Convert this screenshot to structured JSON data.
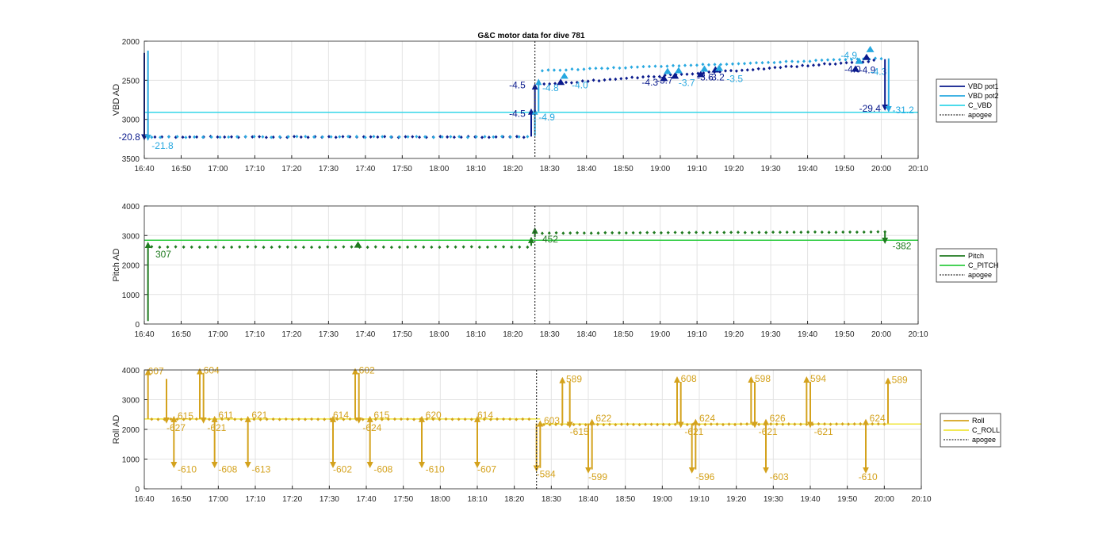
{
  "figure": {
    "title": "G&C motor data for dive 781",
    "apogee_label": "apogee"
  },
  "chart_data": [
    {
      "type": "scatter",
      "name": "vbd",
      "title": "G&C motor data for dive 781",
      "xlabel": "",
      "ylabel": "VBD AD",
      "xlim": [
        "16:40",
        "20:10"
      ],
      "ylim": [
        2000,
        3500
      ],
      "y_reversed": true,
      "yticks": [
        2000,
        2500,
        3000,
        3500
      ],
      "xticks": [
        "16:40",
        "16:50",
        "17:00",
        "17:10",
        "17:20",
        "17:30",
        "17:40",
        "17:50",
        "18:00",
        "18:10",
        "18:20",
        "18:30",
        "18:40",
        "18:50",
        "19:00",
        "19:10",
        "19:20",
        "19:30",
        "19:40",
        "19:50",
        "20:00",
        "20:10"
      ],
      "grid": true,
      "legend_position": "right",
      "apogee": "18:26",
      "reference_lines": [
        {
          "name": "C_VBD",
          "y": 2910,
          "color": "#33d6e8"
        }
      ],
      "series": [
        {
          "name": "VBD pot1",
          "color": "#0a1a8c",
          "dots": {
            "t0": "16:41",
            "t1": "18:23",
            "n": 55,
            "y": 3225,
            "jitter": 6
          },
          "dots2": {
            "t0": "18:27",
            "t1": "19:58",
            "n": 62,
            "y": 2555,
            "y1": 2250,
            "jitter": 8
          }
        },
        {
          "name": "VBD pot2",
          "color": "#27a8e0",
          "dots": {
            "t0": "16:42",
            "t1": "18:24",
            "n": 45,
            "y": 3225,
            "jitter": 6
          },
          "dots2": {
            "t0": "18:28",
            "t1": "20:00",
            "n": 58,
            "y": 2375,
            "y1": 2220,
            "jitter": 6
          }
        }
      ],
      "arrows": [
        {
          "t": "16:40",
          "from": 2150,
          "to": 3230,
          "color": "#0a1a8c",
          "label": "-20.8",
          "lt": "16:33",
          "ly": 3225,
          "la": "start"
        },
        {
          "t": "16:41",
          "from": 2120,
          "to": 3235,
          "color": "#27a8e0",
          "label": "-21.8",
          "lt": "16:42",
          "ly": 3340,
          "la": "start"
        },
        {
          "t": "18:25",
          "from": 3220,
          "to": 2900,
          "color": "#0a1a8c",
          "label": "-4.5",
          "lt": "18:19",
          "ly": 2925,
          "la": "start"
        },
        {
          "t": "18:26",
          "from": 3210,
          "to": 2900,
          "color": "#27a8e0",
          "label": "-4.9",
          "lt": "18:27",
          "ly": 2975,
          "la": "start"
        },
        {
          "t": "18:26",
          "from": 2900,
          "to": 2580,
          "color": "#0a1a8c",
          "label": "-4.5",
          "lt": "18:19",
          "ly": 2565,
          "la": "start"
        },
        {
          "t": "18:27",
          "from": 2900,
          "to": 2520,
          "color": "#27a8e0",
          "label": "-4.8",
          "lt": "18:28",
          "ly": 2600,
          "la": "start"
        },
        {
          "t": "20:01",
          "from": 2230,
          "to": 2850,
          "color": "#0a1a8c",
          "label": "-29.4",
          "lt": "19:54",
          "ly": 2860,
          "la": "start"
        },
        {
          "t": "20:02",
          "from": 2220,
          "to": 2870,
          "color": "#27a8e0",
          "label": "-31.2",
          "lt": "20:03",
          "ly": 2880,
          "la": "start"
        }
      ],
      "markers": [
        {
          "t": "18:33",
          "y": 2540,
          "color": "#0a1a8c"
        },
        {
          "t": "18:34",
          "y": 2460,
          "color": "#27a8e0",
          "label": "-4.0",
          "lt": "18:36",
          "ly": 2560
        },
        {
          "t": "19:01",
          "y": 2490,
          "color": "#0a1a8c",
          "label": "-4.3",
          "lt": "18:55",
          "ly": 2525
        },
        {
          "t": "19:02",
          "y": 2400,
          "color": "#27a8e0"
        },
        {
          "t": "19:04",
          "y": 2460,
          "color": "#0a1a8c",
          "label": "-3.7",
          "lt": "18:59",
          "ly": 2500
        },
        {
          "t": "19:05",
          "y": 2390,
          "color": "#27a8e0",
          "label": "-3.7",
          "lt": "19:05",
          "ly": 2530
        },
        {
          "t": "19:11",
          "y": 2440,
          "color": "#0a1a8c",
          "label": "-3.6",
          "lt": "19:10",
          "ly": 2460
        },
        {
          "t": "19:12",
          "y": 2370,
          "color": "#27a8e0"
        },
        {
          "t": "19:15",
          "y": 2380,
          "color": "#0a1a8c",
          "label": "-3.2",
          "lt": "19:13",
          "ly": 2460
        },
        {
          "t": "19:16",
          "y": 2360,
          "color": "#27a8e0",
          "label": "-3.5",
          "lt": "19:18",
          "ly": 2480
        },
        {
          "t": "19:53",
          "y": 2370,
          "color": "#0a1a8c",
          "label": "-4.0",
          "lt": "19:50",
          "ly": 2360
        },
        {
          "t": "19:54",
          "y": 2270,
          "color": "#27a8e0",
          "label": "-4.9",
          "lt": "19:49",
          "ly": 2180
        },
        {
          "t": "19:56",
          "y": 2220,
          "color": "#0a1a8c",
          "label": "-4.9",
          "lt": "19:54",
          "ly": 2370
        },
        {
          "t": "19:57",
          "y": 2120,
          "color": "#27a8e0",
          "label": "-4.3",
          "lt": "19:57",
          "ly": 2390
        }
      ],
      "legend": [
        {
          "label": "VBD pot1",
          "color": "#0a1a8c",
          "style": "solid"
        },
        {
          "label": "VBD pot2",
          "color": "#27a8e0",
          "style": "solid"
        },
        {
          "label": "C_VBD",
          "color": "#33d6e8",
          "style": "solid"
        },
        {
          "label": "apogee",
          "color": "#333333",
          "style": "dotted"
        }
      ]
    },
    {
      "type": "scatter",
      "name": "pitch",
      "xlabel": "",
      "ylabel": "Pitch AD",
      "xlim": [
        "16:40",
        "20:10"
      ],
      "ylim": [
        0,
        4000
      ],
      "y_reversed": false,
      "yticks": [
        0,
        1000,
        2000,
        3000,
        4000
      ],
      "xticks": [
        "16:40",
        "16:50",
        "17:00",
        "17:10",
        "17:20",
        "17:30",
        "17:40",
        "17:50",
        "18:00",
        "18:10",
        "18:20",
        "18:30",
        "18:40",
        "18:50",
        "19:00",
        "19:10",
        "19:20",
        "19:30",
        "19:40",
        "19:50",
        "20:00",
        "20:10"
      ],
      "grid": true,
      "legend_position": "right",
      "apogee": "18:26",
      "reference_lines": [
        {
          "name": "C_PITCH",
          "y": 2840,
          "color": "#2ecc40"
        }
      ],
      "series": [
        {
          "name": "Pitch",
          "color": "#1f7a1f",
          "dots": {
            "t0": "16:42",
            "t1": "18:24",
            "n": 48,
            "y": 2610,
            "jitter": 10
          },
          "dots2": {
            "t0": "18:28",
            "t1": "20:01",
            "n": 50,
            "y": 3080,
            "y1": 3120,
            "jitter": 8
          }
        }
      ],
      "arrows": [
        {
          "t": "16:41",
          "from": 100,
          "to": 2680,
          "color": "#1f7a1f",
          "label": "307",
          "lt": "16:43",
          "ly": 2360,
          "la": "start"
        },
        {
          "t": "18:25",
          "from": 2650,
          "to": 2850,
          "color": "#1f7a1f",
          "label": "",
          "lt": "18:25",
          "ly": 2850,
          "la": "start"
        },
        {
          "t": "18:26",
          "from": 2950,
          "to": 3170,
          "color": "#1f7a1f",
          "label": "452",
          "lt": "18:28",
          "ly": 2870,
          "la": "start"
        },
        {
          "t": "20:01",
          "from": 3120,
          "to": 2820,
          "color": "#1f7a1f",
          "label": "-382",
          "lt": "20:03",
          "ly": 2640,
          "la": "start"
        }
      ],
      "markers": [
        {
          "t": "17:38",
          "y": 2640,
          "color": "#1f7a1f"
        }
      ],
      "legend": [
        {
          "label": "Pitch",
          "color": "#1f7a1f",
          "style": "solid"
        },
        {
          "label": "C_PITCH",
          "color": "#2ecc40",
          "style": "solid"
        },
        {
          "label": "apogee",
          "color": "#333333",
          "style": "dotted"
        }
      ]
    },
    {
      "type": "scatter",
      "name": "roll",
      "xlabel": "",
      "ylabel": "Roll AD",
      "xlim": [
        "16:40",
        "20:10"
      ],
      "ylim": [
        0,
        4000
      ],
      "y_reversed": false,
      "yticks": [
        0,
        1000,
        2000,
        3000,
        4000
      ],
      "xticks": [
        "16:40",
        "16:50",
        "17:00",
        "17:10",
        "17:20",
        "17:30",
        "17:40",
        "17:50",
        "18:00",
        "18:10",
        "18:20",
        "18:30",
        "18:40",
        "18:50",
        "19:00",
        "19:10",
        "19:20",
        "19:30",
        "19:40",
        "19:50",
        "20:00",
        "20:10"
      ],
      "grid": true,
      "legend_position": "right",
      "apogee": "18:26",
      "reference_lines": [
        {
          "name": "C_ROLL",
          "y": 2350,
          "y_end": 2180,
          "t_switch": "18:27",
          "color": "#f0e63c"
        }
      ],
      "series": [
        {
          "name": "Roll",
          "color": "#d4a21d",
          "dots": {
            "t0": "16:42",
            "t1": "18:24",
            "n": 60,
            "y": 2340,
            "jitter": 8
          },
          "dots2": {
            "t0": "18:28",
            "t1": "20:00",
            "n": 58,
            "y": 2160,
            "y1": 2180,
            "jitter": 8
          }
        }
      ],
      "arrows": [
        {
          "t": "16:41",
          "from": 2350,
          "to": 3930,
          "color": "#d4a21d",
          "label": "607",
          "lt": "16:41",
          "ly": 3960,
          "la": "start"
        },
        {
          "t": "16:46",
          "from": 3700,
          "to": 2300,
          "color": "#d4a21d",
          "label": "-627",
          "lt": "16:46",
          "ly": 2050,
          "la": "start"
        },
        {
          "t": "16:48",
          "from": 2300,
          "to": 800,
          "color": "#d4a21d",
          "label": "-610",
          "lt": "16:49",
          "ly": 650,
          "la": "start"
        },
        {
          "t": "16:48",
          "from": 2300,
          "to": 2350,
          "color": "#d4a21d",
          "label": "615",
          "lt": "16:49",
          "ly": 2450,
          "la": "start"
        },
        {
          "t": "16:55",
          "from": 2350,
          "to": 3960,
          "color": "#d4a21d",
          "label": "604",
          "lt": "16:56",
          "ly": 3990,
          "la": "start"
        },
        {
          "t": "16:56",
          "from": 3900,
          "to": 2300,
          "color": "#d4a21d",
          "label": "-621",
          "lt": "16:57",
          "ly": 2050,
          "la": "start"
        },
        {
          "t": "16:59",
          "from": 2350,
          "to": 800,
          "color": "#d4a21d",
          "label": "-608",
          "lt": "17:00",
          "ly": 650,
          "la": "start"
        },
        {
          "t": "16:59",
          "from": 2300,
          "to": 2350,
          "color": "#d4a21d",
          "label": "611",
          "lt": "17:00",
          "ly": 2480,
          "la": "start"
        },
        {
          "t": "17:08",
          "from": 2350,
          "to": 800,
          "color": "#d4a21d",
          "label": "-613",
          "lt": "17:09",
          "ly": 650,
          "la": "start"
        },
        {
          "t": "17:08",
          "from": 2300,
          "to": 2350,
          "color": "#d4a21d",
          "label": "621",
          "lt": "17:09",
          "ly": 2480,
          "la": "start"
        },
        {
          "t": "17:31",
          "from": 2350,
          "to": 800,
          "color": "#d4a21d",
          "label": "-602",
          "lt": "17:31",
          "ly": 650,
          "la": "start"
        },
        {
          "t": "17:31",
          "from": 2300,
          "to": 2350,
          "color": "#d4a21d",
          "label": "614",
          "lt": "17:31",
          "ly": 2480,
          "la": "start"
        },
        {
          "t": "17:37",
          "from": 2350,
          "to": 3960,
          "color": "#d4a21d",
          "label": "602",
          "lt": "17:38",
          "ly": 3990,
          "la": "start"
        },
        {
          "t": "17:38",
          "from": 3900,
          "to": 2300,
          "color": "#d4a21d",
          "label": "-624",
          "lt": "17:39",
          "ly": 2050,
          "la": "start"
        },
        {
          "t": "17:41",
          "from": 2350,
          "to": 800,
          "color": "#d4a21d",
          "label": "-608",
          "lt": "17:42",
          "ly": 650,
          "la": "start"
        },
        {
          "t": "17:41",
          "from": 2300,
          "to": 2350,
          "color": "#d4a21d",
          "label": "615",
          "lt": "17:42",
          "ly": 2480,
          "la": "start"
        },
        {
          "t": "17:55",
          "from": 2350,
          "to": 800,
          "color": "#d4a21d",
          "label": "-610",
          "lt": "17:56",
          "ly": 650,
          "la": "start"
        },
        {
          "t": "17:55",
          "from": 2300,
          "to": 2350,
          "color": "#d4a21d",
          "label": "620",
          "lt": "17:56",
          "ly": 2480,
          "la": "start"
        },
        {
          "t": "18:10",
          "from": 2350,
          "to": 800,
          "color": "#d4a21d",
          "label": "-607",
          "lt": "18:10",
          "ly": 650,
          "la": "start"
        },
        {
          "t": "18:10",
          "from": 2300,
          "to": 2350,
          "color": "#d4a21d",
          "label": "614",
          "lt": "18:10",
          "ly": 2480,
          "la": "start"
        },
        {
          "t": "18:26",
          "from": 2200,
          "to": 680,
          "color": "#d4a21d",
          "label": "-584",
          "lt": "18:26",
          "ly": 500,
          "la": "start"
        },
        {
          "t": "18:27",
          "from": 700,
          "to": 2200,
          "color": "#d4a21d",
          "label": "603",
          "lt": "18:28",
          "ly": 2300,
          "la": "start"
        },
        {
          "t": "18:33",
          "from": 2200,
          "to": 3660,
          "color": "#d4a21d",
          "label": "589",
          "lt": "18:34",
          "ly": 3690,
          "la": "start"
        },
        {
          "t": "18:35",
          "from": 3600,
          "to": 2150,
          "color": "#d4a21d",
          "label": "-615",
          "lt": "18:35",
          "ly": 1920,
          "la": "start"
        },
        {
          "t": "18:40",
          "from": 2200,
          "to": 620,
          "color": "#d4a21d",
          "label": "-599",
          "lt": "18:40",
          "ly": 400,
          "la": "start"
        },
        {
          "t": "18:41",
          "from": 650,
          "to": 2250,
          "color": "#d4a21d",
          "label": "622",
          "lt": "18:42",
          "ly": 2380,
          "la": "start"
        },
        {
          "t": "19:04",
          "from": 2200,
          "to": 3680,
          "color": "#d4a21d",
          "label": "608",
          "lt": "19:05",
          "ly": 3710,
          "la": "start"
        },
        {
          "t": "19:05",
          "from": 3600,
          "to": 2150,
          "color": "#d4a21d",
          "label": "-621",
          "lt": "19:06",
          "ly": 1920,
          "la": "start"
        },
        {
          "t": "19:08",
          "from": 2200,
          "to": 620,
          "color": "#d4a21d",
          "label": "-596",
          "lt": "19:09",
          "ly": 400,
          "la": "start"
        },
        {
          "t": "19:09",
          "from": 650,
          "to": 2250,
          "color": "#d4a21d",
          "label": "624",
          "lt": "19:10",
          "ly": 2380,
          "la": "start"
        },
        {
          "t": "19:24",
          "from": 2200,
          "to": 3680,
          "color": "#d4a21d",
          "label": "598",
          "lt": "19:25",
          "ly": 3710,
          "la": "start"
        },
        {
          "t": "19:25",
          "from": 3600,
          "to": 2150,
          "color": "#d4a21d",
          "label": "-621",
          "lt": "19:26",
          "ly": 1920,
          "la": "start"
        },
        {
          "t": "19:28",
          "from": 2200,
          "to": 620,
          "color": "#d4a21d",
          "label": "-603",
          "lt": "19:29",
          "ly": 400,
          "la": "start"
        },
        {
          "t": "19:28",
          "from": 650,
          "to": 2250,
          "color": "#d4a21d",
          "label": "626",
          "lt": "19:29",
          "ly": 2380,
          "la": "start"
        },
        {
          "t": "19:39",
          "from": 2200,
          "to": 3680,
          "color": "#d4a21d",
          "label": "594",
          "lt": "19:40",
          "ly": 3710,
          "la": "start"
        },
        {
          "t": "19:40",
          "from": 3600,
          "to": 2150,
          "color": "#d4a21d",
          "label": "-621",
          "lt": "19:41",
          "ly": 1920,
          "la": "start"
        },
        {
          "t": "19:55",
          "from": 2150,
          "to": 620,
          "color": "#d4a21d",
          "label": "-610",
          "lt": "19:53",
          "ly": 400,
          "la": "start"
        },
        {
          "t": "19:55",
          "from": 650,
          "to": 2250,
          "color": "#d4a21d",
          "label": "624",
          "lt": "19:56",
          "ly": 2380,
          "la": "start"
        },
        {
          "t": "20:01",
          "from": 2200,
          "to": 3640,
          "color": "#d4a21d",
          "label": "589",
          "lt": "20:02",
          "ly": 3670,
          "la": "start"
        }
      ],
      "markers": [],
      "legend": [
        {
          "label": "Roll",
          "color": "#d4a21d",
          "style": "solid"
        },
        {
          "label": "C_ROLL",
          "color": "#f0e63c",
          "style": "solid"
        },
        {
          "label": "apogee",
          "color": "#333333",
          "style": "dotted"
        }
      ]
    }
  ]
}
